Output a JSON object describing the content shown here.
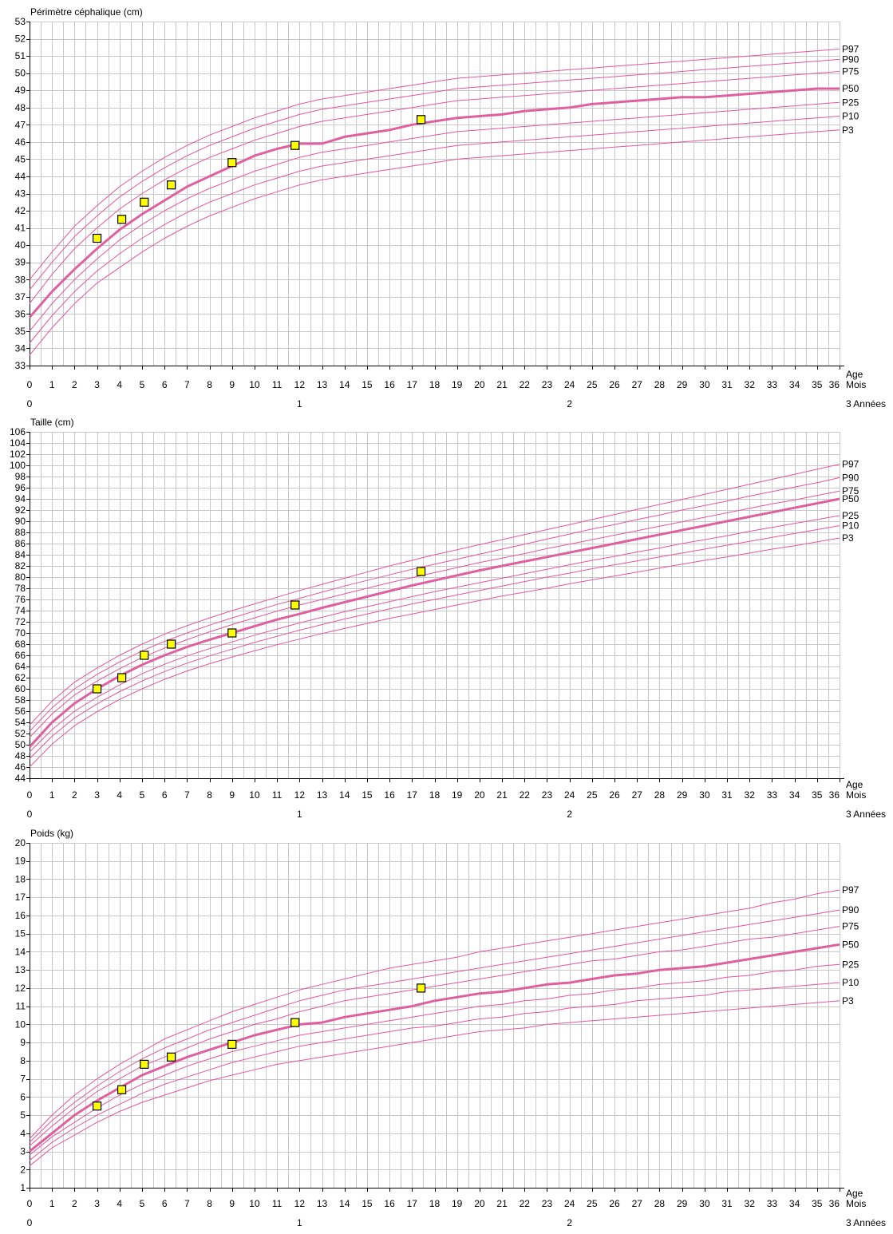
{
  "chart_data": [
    {
      "type": "line",
      "title": "Périmètre céphalique (cm)",
      "xlabel": "Age",
      "x_unit": "Mois",
      "x2_unit": "3 Années",
      "ylim": [
        33,
        53
      ],
      "ytick_step": 1,
      "xlim": [
        0,
        36
      ],
      "x": [
        0,
        1,
        2,
        3,
        4,
        5,
        6,
        7,
        8,
        9,
        10,
        11,
        12,
        13,
        14,
        15,
        16,
        17,
        18,
        19,
        20,
        21,
        22,
        23,
        24,
        25,
        26,
        27,
        28,
        29,
        30,
        31,
        32,
        33,
        34,
        35,
        36
      ],
      "series": [
        {
          "name": "P97",
          "values": [
            38.0,
            39.6,
            41.1,
            42.3,
            43.4,
            44.3,
            45.1,
            45.8,
            46.4,
            46.9,
            47.4,
            47.8,
            48.2,
            48.5,
            48.7,
            48.9,
            49.1,
            49.3,
            49.5,
            49.7,
            49.8,
            49.9,
            50.0,
            50.1,
            50.2,
            50.3,
            50.4,
            50.5,
            50.6,
            50.7,
            50.8,
            50.9,
            51.0,
            51.1,
            51.2,
            51.3,
            51.4
          ]
        },
        {
          "name": "P90",
          "values": [
            37.4,
            39.0,
            40.5,
            41.7,
            42.8,
            43.7,
            44.5,
            45.2,
            45.8,
            46.3,
            46.8,
            47.2,
            47.6,
            47.9,
            48.1,
            48.3,
            48.5,
            48.7,
            48.9,
            49.1,
            49.2,
            49.3,
            49.4,
            49.5,
            49.6,
            49.7,
            49.8,
            49.9,
            50.0,
            50.1,
            50.2,
            50.3,
            50.4,
            50.5,
            50.6,
            50.7,
            50.8
          ]
        },
        {
          "name": "P75",
          "values": [
            36.6,
            38.3,
            39.8,
            41.0,
            42.1,
            43.0,
            43.8,
            44.5,
            45.1,
            45.6,
            46.1,
            46.5,
            46.9,
            47.2,
            47.4,
            47.6,
            47.8,
            48.0,
            48.2,
            48.4,
            48.5,
            48.6,
            48.7,
            48.8,
            48.9,
            49.0,
            49.1,
            49.2,
            49.3,
            49.4,
            49.5,
            49.6,
            49.7,
            49.8,
            49.9,
            50.0,
            50.1
          ]
        },
        {
          "name": "P50",
          "values": [
            35.8,
            37.3,
            38.6,
            39.8,
            40.9,
            41.8,
            42.6,
            43.4,
            44.0,
            44.6,
            45.2,
            45.6,
            45.9,
            45.9,
            46.3,
            46.5,
            46.7,
            47.0,
            47.2,
            47.4,
            47.5,
            47.6,
            47.8,
            47.9,
            48.0,
            48.2,
            48.3,
            48.4,
            48.5,
            48.6,
            48.6,
            48.7,
            48.8,
            48.9,
            49.0,
            49.1,
            49.1
          ]
        },
        {
          "name": "P25",
          "values": [
            35.0,
            36.6,
            38.0,
            39.2,
            40.3,
            41.2,
            42.0,
            42.7,
            43.3,
            43.8,
            44.3,
            44.7,
            45.1,
            45.4,
            45.6,
            45.8,
            46.0,
            46.2,
            46.4,
            46.6,
            46.7,
            46.8,
            46.9,
            47.0,
            47.1,
            47.2,
            47.3,
            47.4,
            47.5,
            47.6,
            47.7,
            47.8,
            47.9,
            48.0,
            48.1,
            48.2,
            48.3
          ]
        },
        {
          "name": "P10",
          "values": [
            34.3,
            35.9,
            37.3,
            38.5,
            39.5,
            40.4,
            41.2,
            41.9,
            42.5,
            43.0,
            43.5,
            43.9,
            44.3,
            44.6,
            44.8,
            45.0,
            45.2,
            45.4,
            45.6,
            45.8,
            45.9,
            46.0,
            46.1,
            46.2,
            46.3,
            46.4,
            46.5,
            46.6,
            46.7,
            46.8,
            46.9,
            47.0,
            47.1,
            47.2,
            47.3,
            47.4,
            47.5
          ]
        },
        {
          "name": "P3",
          "values": [
            33.6,
            35.2,
            36.6,
            37.8,
            38.7,
            39.6,
            40.4,
            41.1,
            41.7,
            42.2,
            42.7,
            43.1,
            43.5,
            43.8,
            44.0,
            44.2,
            44.4,
            44.6,
            44.8,
            45.0,
            45.1,
            45.2,
            45.3,
            45.4,
            45.5,
            45.6,
            45.7,
            45.8,
            45.9,
            46.0,
            46.1,
            46.2,
            46.3,
            46.4,
            46.5,
            46.6,
            46.7
          ]
        }
      ],
      "measurements": [
        {
          "x": 3.0,
          "y": 40.4
        },
        {
          "x": 4.1,
          "y": 41.5
        },
        {
          "x": 5.1,
          "y": 42.5
        },
        {
          "x": 6.3,
          "y": 43.5
        },
        {
          "x": 9.0,
          "y": 44.8
        },
        {
          "x": 11.8,
          "y": 45.8
        },
        {
          "x": 17.4,
          "y": 47.3
        }
      ]
    },
    {
      "type": "line",
      "title": "Taille (cm)",
      "xlabel": "Age",
      "x_unit": "Mois",
      "x2_unit": "3 Années",
      "ylim": [
        44,
        106
      ],
      "ytick_step": 2,
      "xlim": [
        0,
        36
      ],
      "x": [
        0,
        1,
        2,
        3,
        4,
        5,
        6,
        7,
        8,
        9,
        10,
        11,
        12,
        13,
        14,
        15,
        16,
        17,
        18,
        19,
        20,
        21,
        22,
        23,
        24,
        25,
        26,
        27,
        28,
        29,
        30,
        31,
        32,
        33,
        34,
        35,
        36
      ],
      "series": [
        {
          "name": "P97",
          "values": [
            53.5,
            57.8,
            61.2,
            63.7,
            66.0,
            68.0,
            69.8,
            71.3,
            72.7,
            74.0,
            75.2,
            76.4,
            77.6,
            78.7,
            79.8,
            80.9,
            82.0,
            83.0,
            84.0,
            84.9,
            85.8,
            86.7,
            87.6,
            88.5,
            89.4,
            90.3,
            91.2,
            92.1,
            93.0,
            93.9,
            94.8,
            95.7,
            96.6,
            97.5,
            98.4,
            99.3,
            100.2
          ]
        },
        {
          "name": "P90",
          "values": [
            52.4,
            56.6,
            60.0,
            62.6,
            64.8,
            66.8,
            68.5,
            70.0,
            71.4,
            72.7,
            73.9,
            75.1,
            76.2,
            77.3,
            78.4,
            79.4,
            80.4,
            81.4,
            82.3,
            83.2,
            84.1,
            85.0,
            85.9,
            86.8,
            87.7,
            88.6,
            89.4,
            90.3,
            91.1,
            92.0,
            92.8,
            93.6,
            94.5,
            95.3,
            96.1,
            96.9,
            97.8
          ]
        },
        {
          "name": "P75",
          "values": [
            51.3,
            55.5,
            58.9,
            61.4,
            63.6,
            65.6,
            67.3,
            68.8,
            70.2,
            71.5,
            72.7,
            73.9,
            75.0,
            76.0,
            77.0,
            78.0,
            79.0,
            79.9,
            80.8,
            81.7,
            82.6,
            83.4,
            84.2,
            85.1,
            85.9,
            86.7,
            87.5,
            88.3,
            89.1,
            89.9,
            90.7,
            91.5,
            92.3,
            93.1,
            93.8,
            94.6,
            95.4
          ]
        },
        {
          "name": "P50",
          "values": [
            49.6,
            54.0,
            57.4,
            60.0,
            62.3,
            64.3,
            66.0,
            67.5,
            68.8,
            70.0,
            71.2,
            72.4,
            73.4,
            74.5,
            75.5,
            76.5,
            77.5,
            78.5,
            79.4,
            80.3,
            81.2,
            82.0,
            82.8,
            83.6,
            84.4,
            85.2,
            86.0,
            86.8,
            87.6,
            88.4,
            89.2,
            90.0,
            90.8,
            91.6,
            92.4,
            93.2,
            94.0
          ]
        },
        {
          "name": "P25",
          "values": [
            48.7,
            52.7,
            56.0,
            58.5,
            60.7,
            62.7,
            64.4,
            65.9,
            67.2,
            68.4,
            69.6,
            70.7,
            71.8,
            72.8,
            73.8,
            74.7,
            75.6,
            76.5,
            77.4,
            78.2,
            79.0,
            79.8,
            80.6,
            81.4,
            82.2,
            83.0,
            83.7,
            84.5,
            85.2,
            86.0,
            86.7,
            87.4,
            88.2,
            88.9,
            89.6,
            90.3,
            91.0
          ]
        },
        {
          "name": "P10",
          "values": [
            47.5,
            51.5,
            54.8,
            57.3,
            59.5,
            61.4,
            63.1,
            64.6,
            65.9,
            67.1,
            68.3,
            69.4,
            70.5,
            71.5,
            72.5,
            73.4,
            74.3,
            75.2,
            76.0,
            76.8,
            77.6,
            78.4,
            79.2,
            80.0,
            80.7,
            81.5,
            82.2,
            82.9,
            83.6,
            84.3,
            85.0,
            85.7,
            86.4,
            87.1,
            87.8,
            88.5,
            89.2
          ]
        },
        {
          "name": "P3",
          "values": [
            46.0,
            50.1,
            53.4,
            55.9,
            58.1,
            60.0,
            61.7,
            63.2,
            64.5,
            65.7,
            66.8,
            67.9,
            68.9,
            69.9,
            70.8,
            71.7,
            72.6,
            73.4,
            74.2,
            75.0,
            75.8,
            76.6,
            77.3,
            78.0,
            78.8,
            79.5,
            80.2,
            80.9,
            81.6,
            82.3,
            83.0,
            83.6,
            84.3,
            85.0,
            85.6,
            86.3,
            87.0
          ]
        }
      ],
      "measurements": [
        {
          "x": 3.0,
          "y": 60.0
        },
        {
          "x": 4.1,
          "y": 62.0
        },
        {
          "x": 5.1,
          "y": 66.0
        },
        {
          "x": 6.3,
          "y": 68.0
        },
        {
          "x": 9.0,
          "y": 70.0
        },
        {
          "x": 11.8,
          "y": 75.0
        },
        {
          "x": 17.4,
          "y": 81.0
        }
      ]
    },
    {
      "type": "line",
      "title": "Poids (kg)",
      "xlabel": "Age",
      "x_unit": "Mois",
      "x2_unit": "3 Années",
      "ylim": [
        1,
        20
      ],
      "ytick_step": 1,
      "xlim": [
        0,
        36
      ],
      "x": [
        0,
        1,
        2,
        3,
        4,
        5,
        6,
        7,
        8,
        9,
        10,
        11,
        12,
        13,
        14,
        15,
        16,
        17,
        18,
        19,
        20,
        21,
        22,
        23,
        24,
        25,
        26,
        27,
        28,
        29,
        30,
        31,
        32,
        33,
        34,
        35,
        36
      ],
      "series": [
        {
          "name": "P97",
          "values": [
            3.7,
            5.0,
            6.1,
            7.0,
            7.8,
            8.5,
            9.2,
            9.7,
            10.2,
            10.7,
            11.1,
            11.5,
            11.9,
            12.2,
            12.5,
            12.8,
            13.1,
            13.3,
            13.5,
            13.7,
            14.0,
            14.2,
            14.4,
            14.6,
            14.8,
            15.0,
            15.2,
            15.4,
            15.6,
            15.8,
            16.0,
            16.2,
            16.4,
            16.7,
            16.9,
            17.2,
            17.4
          ]
        },
        {
          "name": "P90",
          "values": [
            3.5,
            4.7,
            5.7,
            6.6,
            7.4,
            8.1,
            8.7,
            9.2,
            9.7,
            10.1,
            10.5,
            10.9,
            11.3,
            11.6,
            11.9,
            12.1,
            12.3,
            12.5,
            12.7,
            12.9,
            13.1,
            13.3,
            13.5,
            13.7,
            13.9,
            14.1,
            14.3,
            14.5,
            14.7,
            14.9,
            15.1,
            15.3,
            15.5,
            15.7,
            15.9,
            16.1,
            16.3
          ]
        },
        {
          "name": "P75",
          "values": [
            3.3,
            4.4,
            5.4,
            6.3,
            7.0,
            7.7,
            8.2,
            8.7,
            9.2,
            9.6,
            10.0,
            10.3,
            10.7,
            11.0,
            11.3,
            11.5,
            11.7,
            11.9,
            12.1,
            12.3,
            12.5,
            12.7,
            12.9,
            13.1,
            13.3,
            13.5,
            13.6,
            13.8,
            14.0,
            14.1,
            14.3,
            14.5,
            14.7,
            14.8,
            15.0,
            15.2,
            15.4
          ]
        },
        {
          "name": "P50",
          "values": [
            3.0,
            4.0,
            5.0,
            5.8,
            6.5,
            7.2,
            7.7,
            8.2,
            8.6,
            9.0,
            9.4,
            9.7,
            10.0,
            10.1,
            10.4,
            10.6,
            10.8,
            11.0,
            11.3,
            11.5,
            11.7,
            11.8,
            12.0,
            12.2,
            12.3,
            12.5,
            12.7,
            12.8,
            13.0,
            13.1,
            13.2,
            13.4,
            13.6,
            13.8,
            14.0,
            14.2,
            14.4
          ]
        },
        {
          "name": "P25",
          "values": [
            2.8,
            3.8,
            4.6,
            5.4,
            6.1,
            6.7,
            7.2,
            7.7,
            8.1,
            8.5,
            8.8,
            9.1,
            9.4,
            9.6,
            9.8,
            10.0,
            10.2,
            10.4,
            10.6,
            10.8,
            11.0,
            11.1,
            11.3,
            11.4,
            11.6,
            11.7,
            11.9,
            12.0,
            12.2,
            12.3,
            12.4,
            12.6,
            12.7,
            12.9,
            13.0,
            13.2,
            13.3
          ]
        },
        {
          "name": "P10",
          "values": [
            2.5,
            3.5,
            4.3,
            5.0,
            5.6,
            6.2,
            6.7,
            7.1,
            7.5,
            7.9,
            8.2,
            8.5,
            8.8,
            9.0,
            9.2,
            9.4,
            9.6,
            9.8,
            9.9,
            10.1,
            10.3,
            10.4,
            10.6,
            10.7,
            10.9,
            11.0,
            11.1,
            11.3,
            11.4,
            11.5,
            11.6,
            11.8,
            11.9,
            12.0,
            12.1,
            12.2,
            12.3
          ]
        },
        {
          "name": "P3",
          "values": [
            2.2,
            3.2,
            3.9,
            4.6,
            5.2,
            5.7,
            6.1,
            6.5,
            6.9,
            7.2,
            7.5,
            7.8,
            8.0,
            8.2,
            8.4,
            8.6,
            8.8,
            9.0,
            9.2,
            9.4,
            9.6,
            9.7,
            9.8,
            10.0,
            10.1,
            10.2,
            10.3,
            10.4,
            10.5,
            10.6,
            10.7,
            10.8,
            10.9,
            11.0,
            11.1,
            11.2,
            11.3
          ]
        }
      ],
      "measurements": [
        {
          "x": 3.0,
          "y": 5.5
        },
        {
          "x": 4.1,
          "y": 6.4
        },
        {
          "x": 5.1,
          "y": 7.8
        },
        {
          "x": 6.3,
          "y": 8.2
        },
        {
          "x": 9.0,
          "y": 8.9
        },
        {
          "x": 11.8,
          "y": 10.1
        },
        {
          "x": 17.4,
          "y": 12.0
        }
      ]
    }
  ],
  "years_axis": {
    "labels": [
      "0",
      "1",
      "2"
    ],
    "values": [
      0,
      12,
      24
    ]
  },
  "colors": {
    "grid": "#c8c8c8",
    "curve": "#e8559b",
    "median": "#e0609f",
    "marker_fill": "#ffff00",
    "marker_stroke": "#000000",
    "axis": "#000000"
  }
}
